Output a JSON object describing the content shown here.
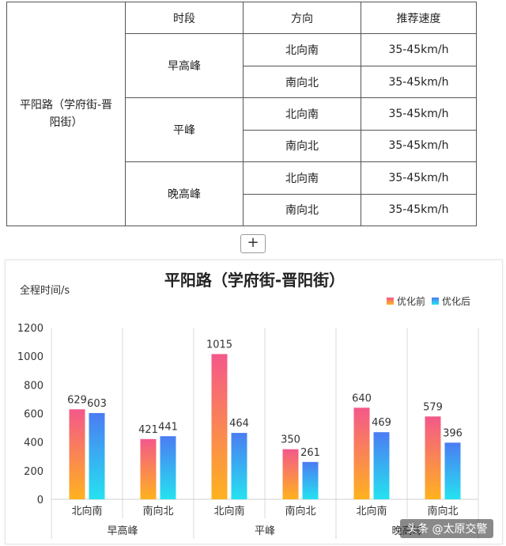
{
  "table": {
    "headers": [
      "时段",
      "方向",
      "推荐速度"
    ],
    "road": "平阳路（学府街-晋阳街）",
    "groups": [
      {
        "period": "早高峰",
        "rows": [
          {
            "direction": "北向南",
            "speed": "35-45km/h"
          },
          {
            "direction": "南向北",
            "speed": "35-45km/h"
          }
        ]
      },
      {
        "period": "平峰",
        "rows": [
          {
            "direction": "北向南",
            "speed": "35-45km/h"
          },
          {
            "direction": "南向北",
            "speed": "35-45km/h"
          }
        ]
      },
      {
        "period": "晚高峰",
        "rows": [
          {
            "direction": "北向南",
            "speed": "35-45km/h"
          },
          {
            "direction": "南向北",
            "speed": "35-45km/h"
          }
        ]
      }
    ]
  },
  "expand_button": "+",
  "watermark": "头条 @太原交警",
  "chart_data": {
    "type": "bar",
    "title": "平阳路（学府街-晋阳街）",
    "ylabel": "全程时间/s",
    "xlabel": "",
    "ylim": [
      0,
      1200
    ],
    "yticks": [
      0,
      200,
      400,
      600,
      800,
      1000,
      1200
    ],
    "categories": [
      "北向南",
      "南向北",
      "北向南",
      "南向北",
      "北向南",
      "南向北"
    ],
    "groups": [
      "早高峰",
      "平峰",
      "晚高峰"
    ],
    "series": [
      {
        "name": "优化前",
        "values": [
          629,
          421,
          1015,
          350,
          640,
          579
        ],
        "colors": [
          "#f4588a",
          "#ffb21f"
        ]
      },
      {
        "name": "优化后",
        "values": [
          603,
          441,
          464,
          261,
          469,
          396
        ],
        "colors": [
          "#4b7cf3",
          "#25e2f0"
        ]
      }
    ],
    "legend": "top-right",
    "grid": false
  }
}
